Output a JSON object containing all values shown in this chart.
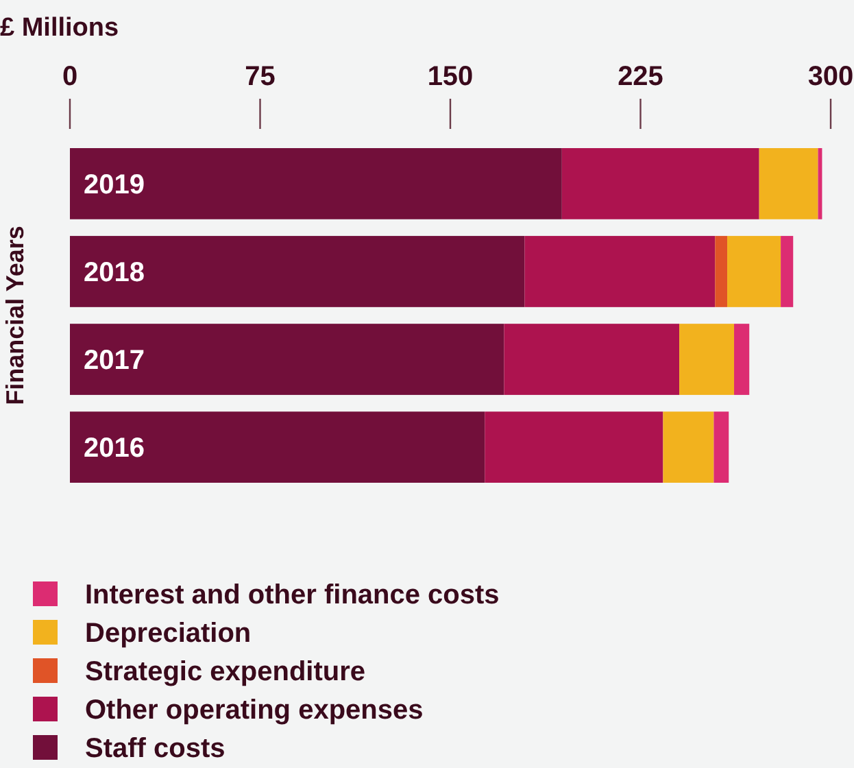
{
  "chart_data": {
    "type": "bar",
    "orientation": "horizontal",
    "stacked": true,
    "xlabel": "£ Millions",
    "ylabel": "Financial Years",
    "categories": [
      "2019",
      "2018",
      "2017",
      "2016"
    ],
    "xlim": [
      0,
      300
    ],
    "xticks": [
      0,
      75,
      150,
      225,
      300
    ],
    "legend": "bottom",
    "grid": false,
    "series": [
      {
        "name": "Staff costs",
        "color": "#720f3a",
        "values": [
          194,
          179.3,
          171.2,
          163.6
        ]
      },
      {
        "name": "Other operating expenses",
        "color": "#ad134f",
        "values": [
          77.8,
          75.1,
          69.1,
          70.3
        ]
      },
      {
        "name": "Strategic expenditure",
        "color": "#e05427",
        "values": [
          0,
          4.8,
          0,
          0
        ]
      },
      {
        "name": "Depreciation",
        "color": "#f2b21e",
        "values": [
          23.2,
          21.1,
          21.6,
          20
        ]
      },
      {
        "name": "Interest and other finance costs",
        "color": "#dc2c72",
        "values": [
          1.6,
          4.9,
          6,
          5.9
        ]
      }
    ]
  }
}
